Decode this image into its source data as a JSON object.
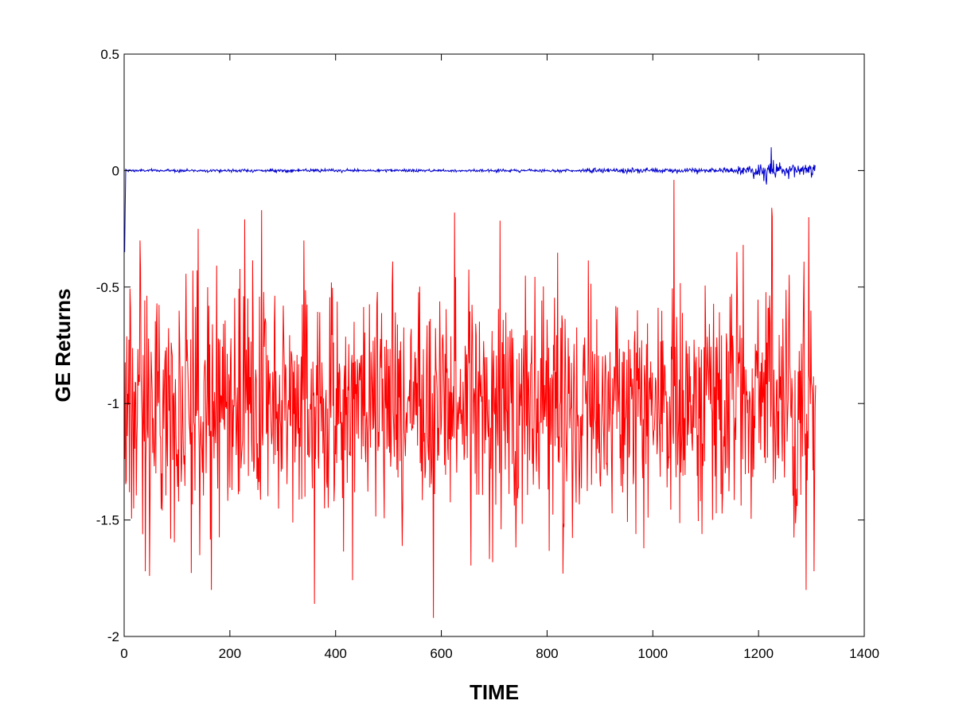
{
  "chart_data": {
    "type": "line",
    "title": "",
    "xlabel": "TIME",
    "ylabel": "GE Returns",
    "xlim": [
      0,
      1400
    ],
    "ylim": [
      -2,
      0.5
    ],
    "x_ticks": [
      0,
      200,
      400,
      600,
      800,
      1000,
      1200,
      1400
    ],
    "x_tick_labels": [
      "0",
      "200",
      "400",
      "600",
      "800",
      "1000",
      "1200",
      "1400"
    ],
    "y_ticks": [
      0.5,
      0,
      -0.5,
      -1,
      -1.5,
      -2
    ],
    "y_tick_labels": [
      "0.5",
      "0",
      "-0.5",
      "-1",
      "-1.5",
      "-2"
    ],
    "grid": false,
    "legend": "none",
    "x_range": [
      1,
      1308
    ],
    "series": [
      {
        "color": "#0000cc",
        "baseline": 0.0,
        "noise_sd": 0.003,
        "key_points": [
          [
            1,
            -0.35
          ],
          [
            2,
            -0.15
          ],
          [
            3,
            0.005
          ],
          [
            1190,
            -0.02
          ],
          [
            1200,
            0.025
          ],
          [
            1210,
            -0.045
          ],
          [
            1215,
            -0.06
          ],
          [
            1222,
            0.03
          ],
          [
            1224,
            0.1
          ],
          [
            1228,
            0.045
          ],
          [
            1232,
            -0.03
          ],
          [
            1240,
            0.035
          ],
          [
            1300,
            -0.03
          ],
          [
            1305,
            0.025
          ],
          [
            1308,
            0.02
          ]
        ]
      },
      {
        "color": "#ff0000",
        "baseline": -1.0,
        "noise_sd": 0.25,
        "key_points": [
          [
            30,
            -0.3
          ],
          [
            40,
            -1.72
          ],
          [
            48,
            -1.74
          ],
          [
            140,
            -0.25
          ],
          [
            165,
            -1.8
          ],
          [
            260,
            -0.17
          ],
          [
            340,
            -0.3
          ],
          [
            360,
            -1.86
          ],
          [
            585,
            -1.92
          ],
          [
            625,
            -0.18
          ],
          [
            830,
            -1.73
          ],
          [
            1040,
            -0.04
          ],
          [
            1225,
            -0.16
          ],
          [
            1295,
            -0.2
          ],
          [
            1290,
            -1.8
          ],
          [
            1305,
            -1.72
          ]
        ]
      }
    ]
  }
}
